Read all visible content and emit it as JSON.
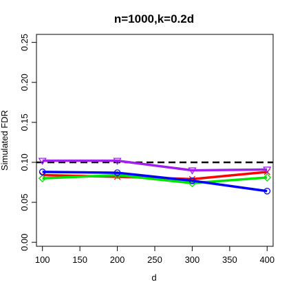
{
  "chart_data": {
    "type": "line",
    "title": "n=1000,k=0.2d",
    "xlabel": "d",
    "ylabel": "Simulated FDR",
    "x": [
      100,
      200,
      300,
      400
    ],
    "xlim": [
      92,
      408
    ],
    "ylim": [
      -0.005,
      0.26
    ],
    "xticks": [
      "100",
      "150",
      "200",
      "250",
      "300",
      "350",
      "400"
    ],
    "yticks": [
      "0.00",
      "0.05",
      "0.10",
      "0.15",
      "0.20",
      "0.25"
    ],
    "reference_line": {
      "y": 0.1,
      "style": "dashed",
      "color": "#000000"
    },
    "grid": false,
    "series": [
      {
        "color": "#ff0000",
        "marker": "x",
        "values": [
          0.084,
          0.082,
          0.079,
          0.088
        ]
      },
      {
        "color": "#00e600",
        "marker": "diamond",
        "values": [
          0.08,
          0.084,
          0.074,
          0.081
        ]
      },
      {
        "color": "#0000ff",
        "marker": "circle",
        "values": [
          0.088,
          0.087,
          0.077,
          0.064
        ]
      },
      {
        "color": "#a020f0",
        "marker": "triangle-down",
        "values": [
          0.102,
          0.102,
          0.09,
          0.091
        ]
      }
    ]
  }
}
